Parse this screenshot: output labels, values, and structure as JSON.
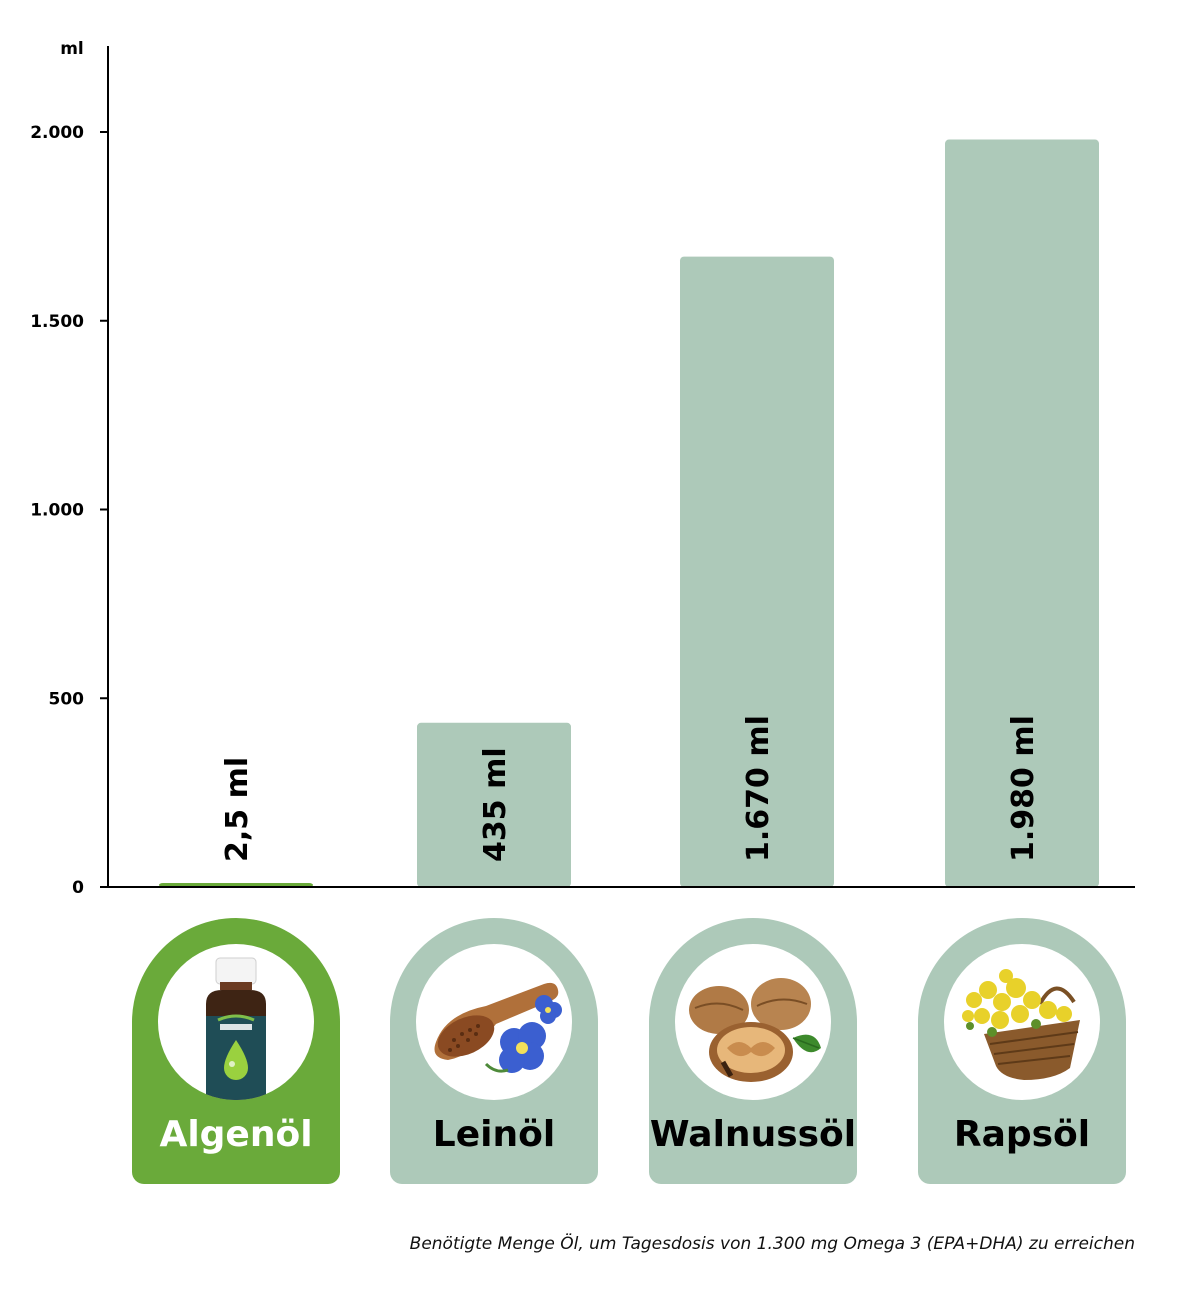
{
  "chart_data": {
    "type": "bar",
    "unit_label": "ml",
    "categories": [
      "Algenöl",
      "Leinöl",
      "Walnussöl",
      "Rapsöl"
    ],
    "values": [
      2.5,
      435,
      1670,
      1980
    ],
    "value_labels": [
      "2,5 ml",
      "435 ml",
      "1.670 ml",
      "1.980 ml"
    ],
    "yticks": [
      {
        "value": 0,
        "label": "0"
      },
      {
        "value": 500,
        "label": "500"
      },
      {
        "value": 1000,
        "label": "1.000"
      },
      {
        "value": 1500,
        "label": "1.500"
      },
      {
        "value": 2000,
        "label": "2.000"
      }
    ],
    "ylim": [
      0,
      2230
    ],
    "grid": false,
    "caption": "Benötigte Menge Öl, um Tagesdosis von 1.300 mg Omega 3 (EPA+DHA) zu erreichen"
  },
  "colors": {
    "highlight": "#6aaa3a",
    "bar": "#adc9b9",
    "axis": "#000000"
  },
  "cards": [
    {
      "label": "Algenöl",
      "icon": "algae-oil-bottle-icon",
      "highlight": true
    },
    {
      "label": "Leinöl",
      "icon": "flaxseed-flower-icon",
      "highlight": false
    },
    {
      "label": "Walnussöl",
      "icon": "walnut-icon",
      "highlight": false
    },
    {
      "label": "Rapsöl",
      "icon": "rapeseed-basket-icon",
      "highlight": false
    }
  ]
}
